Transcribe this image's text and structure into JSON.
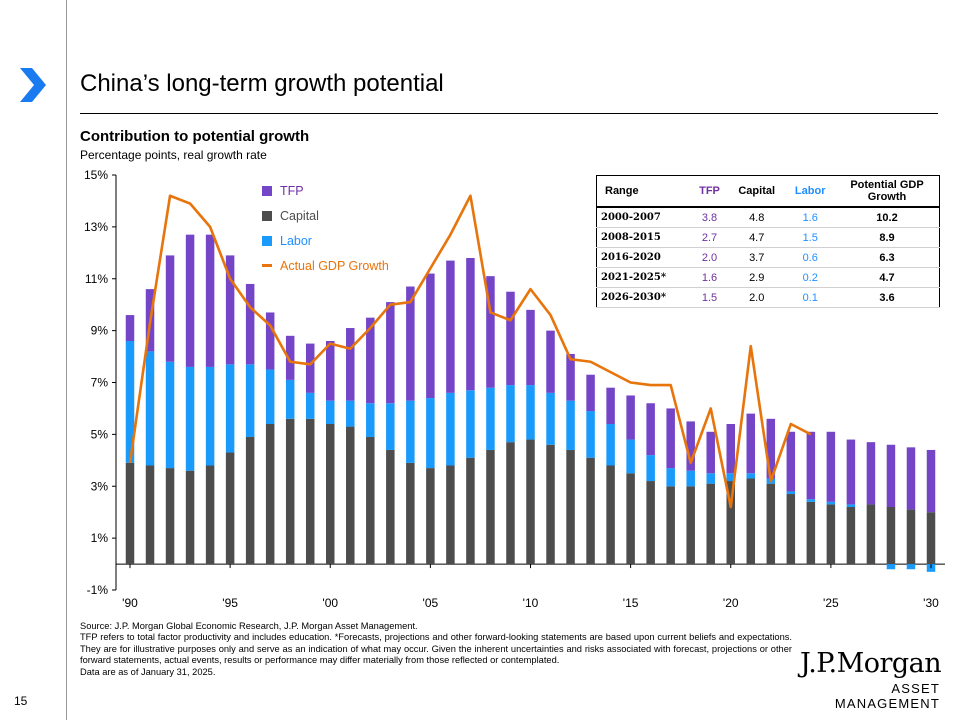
{
  "page": {
    "title": "China’s long-term growth potential",
    "subtitle": "Contribution to potential growth",
    "units": "Percentage points, real growth rate",
    "page_number": "15",
    "source_lines": [
      "Source: J.P. Morgan Global Economic Research, J.P. Morgan Asset Management.",
      "TFP refers to total factor productivity and includes education. *Forecasts, projections and other forward-looking statements are based upon current beliefs and expectations. They are for illustrative purposes only and serve as an indication of what may occur. Given the inherent uncertainties and risks associated with forecast, projections or other forward statements, actual events, results or performance may differ materially from those reflected or contemplated.",
      "Data are as of January 31, 2025."
    ],
    "brand": {
      "name": "J.P.Morgan",
      "sub": "ASSET MANAGEMENT"
    }
  },
  "legend": {
    "tfp": "TFP",
    "capital": "Capital",
    "labor": "Labor",
    "gdp": "Actual GDP Growth"
  },
  "colors": {
    "tfp": "#7446c7",
    "capital": "#4d4d4d",
    "labor": "#1a9bfc",
    "gdp": "#e8740c",
    "accent": "#1a7bf0"
  },
  "table": {
    "headers": [
      "Range",
      "TFP",
      "Capital",
      "Labor",
      "Potential GDP Growth"
    ],
    "rows": [
      {
        "range": "2000-2007",
        "tfp": "3.8",
        "capital": "4.8",
        "labor": "1.6",
        "potential": "10.2"
      },
      {
        "range": "2008-2015",
        "tfp": "2.7",
        "capital": "4.7",
        "labor": "1.5",
        "potential": "8.9"
      },
      {
        "range": "2016-2020",
        "tfp": "2.0",
        "capital": "3.7",
        "labor": "0.6",
        "potential": "6.3"
      },
      {
        "range": "2021-2025*",
        "tfp": "1.6",
        "capital": "2.9",
        "labor": "0.2",
        "potential": "4.7"
      },
      {
        "range": "2026-2030*",
        "tfp": "1.5",
        "capital": "2.0",
        "labor": "0.1",
        "potential": "3.6"
      }
    ]
  },
  "chart_data": {
    "type": "bar",
    "stacked": true,
    "title": "Contribution to potential growth",
    "ylabel": "Percentage points, real growth rate",
    "ylim": [
      -1,
      15
    ],
    "yticks": [
      -1,
      1,
      3,
      5,
      7,
      9,
      11,
      13,
      15
    ],
    "ytick_labels": [
      "-1%",
      "1%",
      "3%",
      "5%",
      "7%",
      "9%",
      "11%",
      "13%",
      "15%"
    ],
    "xtick_labels": [
      "'90",
      "'95",
      "'00",
      "'05",
      "'10",
      "'15",
      "'20",
      "'25",
      "'30"
    ],
    "xtick_years": [
      1990,
      1995,
      2000,
      2005,
      2010,
      2015,
      2020,
      2025,
      2030
    ],
    "categories": [
      1990,
      1991,
      1992,
      1993,
      1994,
      1995,
      1996,
      1997,
      1998,
      1999,
      2000,
      2001,
      2002,
      2003,
      2004,
      2005,
      2006,
      2007,
      2008,
      2009,
      2010,
      2011,
      2012,
      2013,
      2014,
      2015,
      2016,
      2017,
      2018,
      2019,
      2020,
      2021,
      2022,
      2023,
      2024,
      2025,
      2026,
      2027,
      2028,
      2029,
      2030
    ],
    "series": [
      {
        "name": "Capital",
        "values": [
          3.9,
          3.8,
          3.7,
          3.6,
          3.8,
          4.3,
          4.9,
          5.4,
          5.6,
          5.6,
          5.4,
          5.3,
          4.9,
          4.4,
          3.9,
          3.7,
          3.8,
          4.1,
          4.4,
          4.7,
          4.8,
          4.6,
          4.4,
          4.1,
          3.8,
          3.5,
          3.2,
          3.0,
          3.0,
          3.1,
          3.2,
          3.3,
          3.1,
          2.7,
          2.4,
          2.3,
          2.2,
          2.3,
          2.2,
          2.1,
          2.0
        ]
      },
      {
        "name": "Labor",
        "values": [
          4.7,
          4.4,
          4.1,
          4.0,
          3.8,
          3.4,
          2.8,
          2.1,
          1.5,
          1.0,
          0.9,
          1.0,
          1.3,
          1.8,
          2.4,
          2.7,
          2.8,
          2.6,
          2.4,
          2.2,
          2.1,
          2.0,
          1.9,
          1.8,
          1.6,
          1.3,
          1.0,
          0.7,
          0.6,
          0.4,
          0.3,
          0.2,
          0.2,
          0.1,
          0.1,
          0.1,
          0.1,
          0.0,
          -0.2,
          -0.2,
          -0.3
        ]
      },
      {
        "name": "TFP",
        "values": [
          1.0,
          2.4,
          4.1,
          5.1,
          5.1,
          4.2,
          3.1,
          2.2,
          1.7,
          1.9,
          2.3,
          2.8,
          3.3,
          3.9,
          4.4,
          4.8,
          5.1,
          5.1,
          4.3,
          3.6,
          2.9,
          2.4,
          1.8,
          1.4,
          1.4,
          1.7,
          2.0,
          2.3,
          1.9,
          1.6,
          1.9,
          2.3,
          2.3,
          2.3,
          2.6,
          2.7,
          2.5,
          2.4,
          2.4,
          2.4,
          2.4
        ]
      }
    ],
    "line": {
      "name": "Actual GDP Growth",
      "values": [
        3.9,
        9.3,
        14.2,
        13.9,
        13.0,
        11.0,
        9.9,
        9.2,
        7.8,
        7.7,
        8.5,
        8.3,
        9.1,
        10.0,
        10.1,
        11.4,
        12.7,
        14.2,
        9.7,
        9.4,
        10.6,
        9.6,
        7.9,
        7.8,
        7.4,
        7.0,
        6.9,
        6.9,
        3.9,
        6.0,
        2.2,
        8.4,
        3.2,
        5.4,
        5.0
      ]
    }
  }
}
